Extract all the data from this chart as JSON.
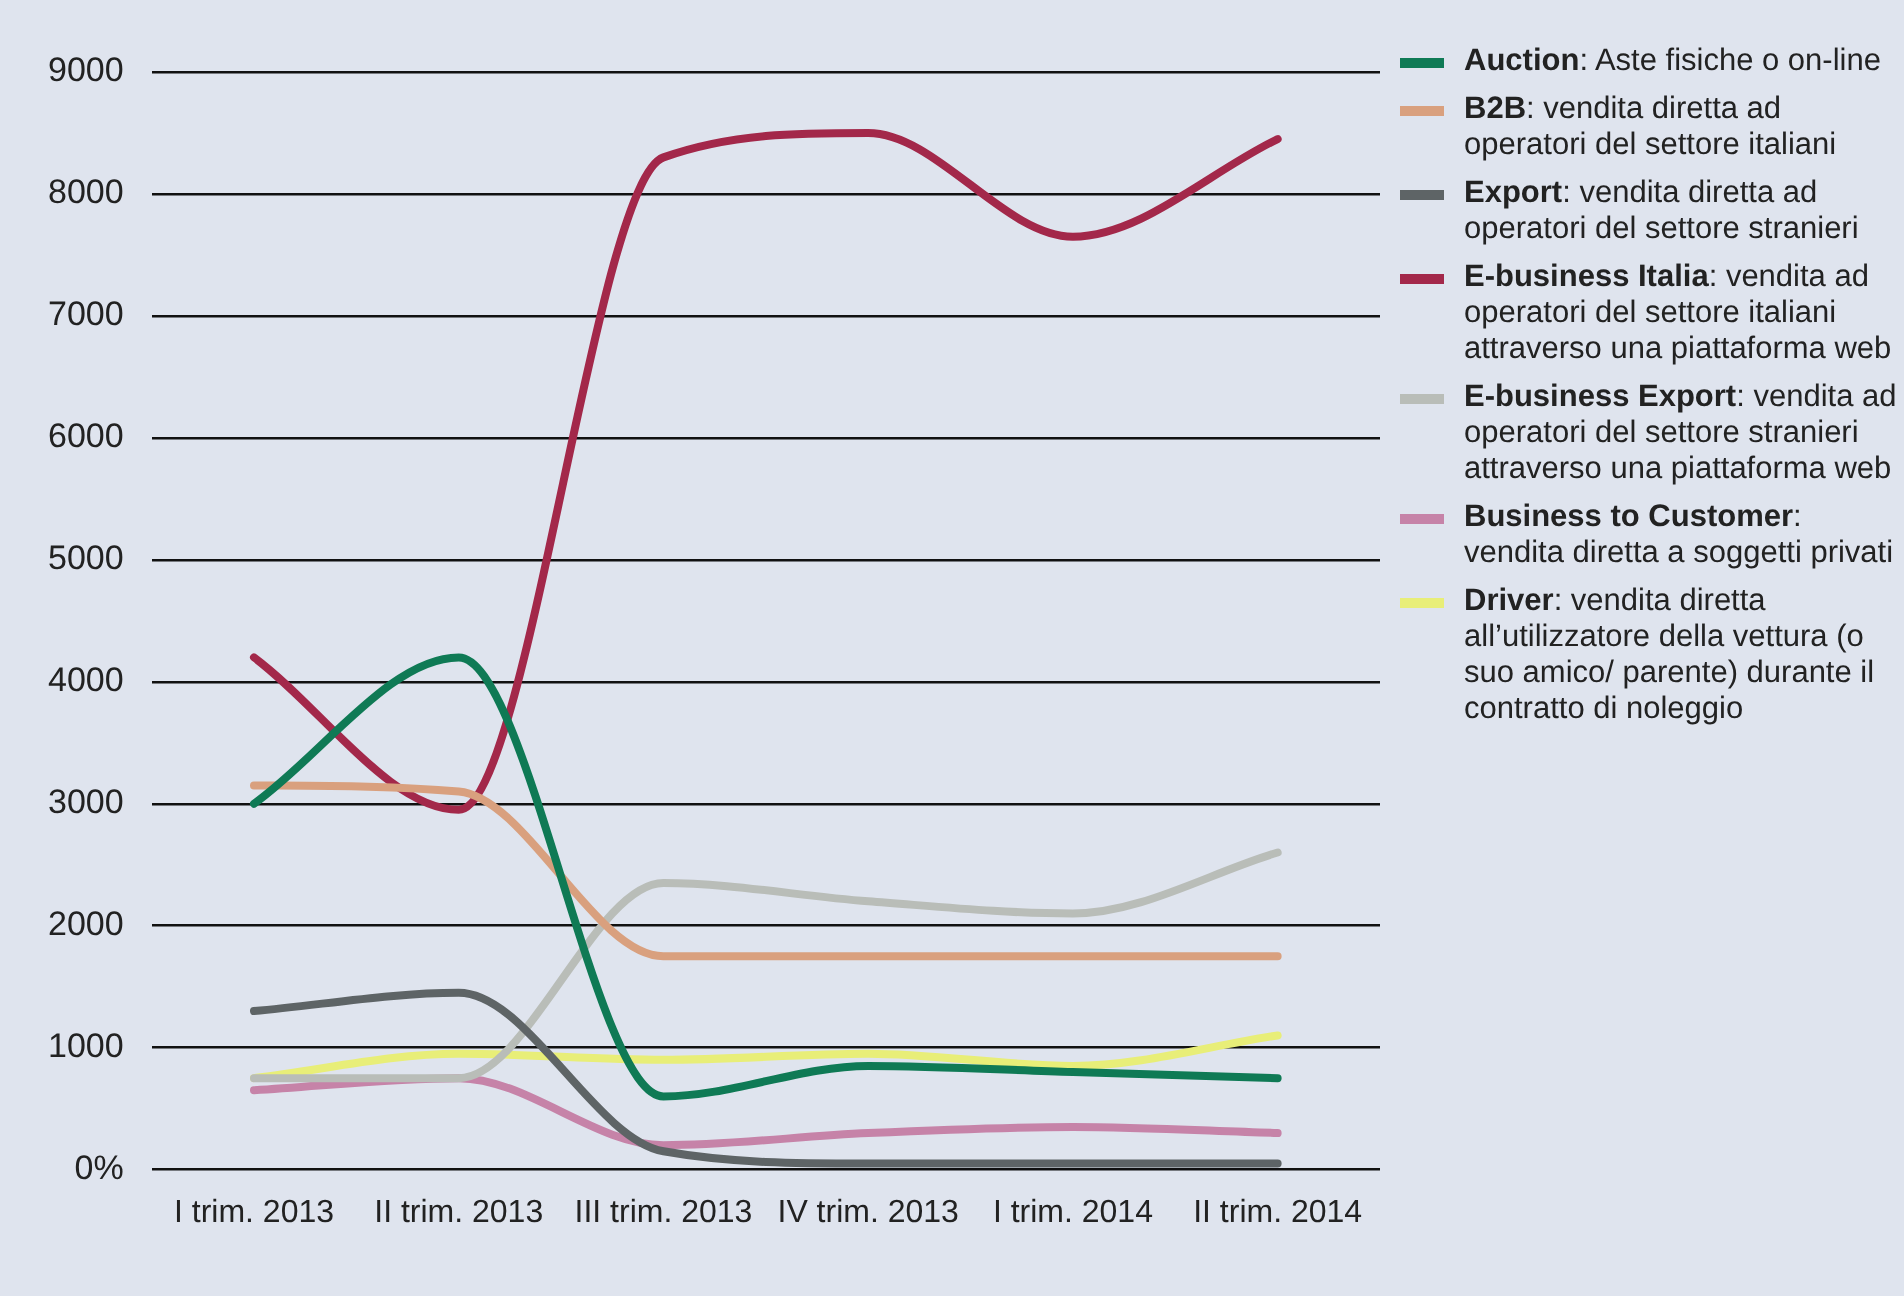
{
  "chart_data": {
    "type": "line",
    "categories": [
      "I trim. 2013",
      "II trim. 2013",
      "III trim. 2013",
      "IV trim. 2013",
      "I trim. 2014",
      "II trim. 2014"
    ],
    "series": [
      {
        "name": "Auction: Aste fisiche o on-line",
        "color": "#0f7a55",
        "values": [
          3000,
          4200,
          600,
          850,
          800,
          750
        ]
      },
      {
        "name": "B2B: vendita diretta ad operatori del settore italiani",
        "color": "#d9a07e",
        "values": [
          3150,
          3100,
          1750,
          1750,
          1750,
          1750
        ]
      },
      {
        "name": "Export: vendita diretta ad operatori del settore stranieri",
        "color": "#5e6466",
        "values": [
          1300,
          1450,
          150,
          50,
          50,
          50
        ]
      },
      {
        "name": "E-business Italia: vendita ad operatori del settore italiani attraverso una piattaforma web",
        "color": "#a3284a",
        "values": [
          4200,
          2950,
          8300,
          8500,
          7650,
          8450
        ]
      },
      {
        "name": "E-business Export: vendita ad operatori del settore stranieri attraverso una piattaforma web",
        "color": "#b9bdb8",
        "values": [
          750,
          750,
          2350,
          2200,
          2100,
          2600
        ]
      },
      {
        "name": "Business to Customer: vendita diretta a soggetti privati",
        "color": "#c683a8",
        "values": [
          650,
          750,
          200,
          300,
          350,
          300
        ]
      },
      {
        "name": "Driver: vendita diretta all’utilizzatore della vettura (o suo amico/ parente) durante il contratto di noleggio",
        "color": "#e8ee78",
        "values": [
          750,
          950,
          900,
          950,
          850,
          1100
        ]
      }
    ],
    "ylim": [
      0,
      9000
    ],
    "yticks": [
      {
        "value": 0,
        "label": "0%"
      },
      1000,
      2000,
      3000,
      4000,
      5000,
      6000,
      7000,
      8000,
      9000
    ],
    "grid": "y",
    "legend": "right",
    "line_style": "solid",
    "marker": "none"
  }
}
